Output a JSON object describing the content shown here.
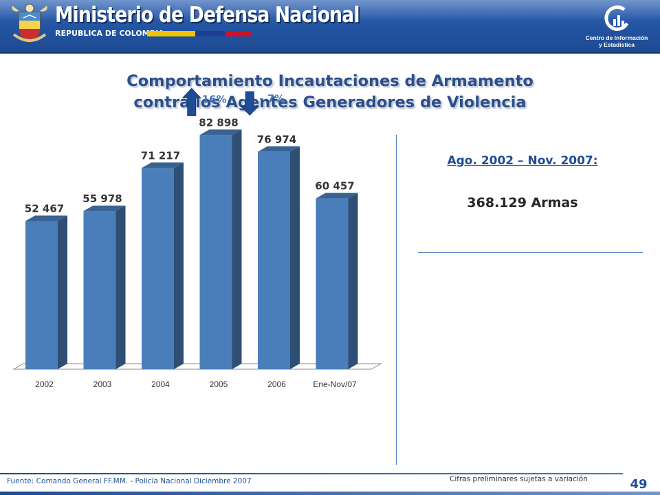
{
  "header": {
    "ministry_title": "Ministerio de Defensa Nacional",
    "ministry_subtitle": "REPUBLICA DE COLOMBIA",
    "logo_line1": "Centro de Información",
    "logo_line2": "y Estadística",
    "flag_colors": [
      "#f4c400",
      "#1c3f94",
      "#ce1126"
    ]
  },
  "title": {
    "line1": "Comportamiento Incautaciones de Armamento",
    "line2": "contra los Agentes Generadores de Violencia"
  },
  "chart_data": {
    "type": "bar",
    "title": "Comportamiento Incautaciones de Armamento contra los Agentes Generadores de Violencia",
    "categories": [
      "2002",
      "2003",
      "2004",
      "2005",
      "2006",
      "Ene-Nov/07"
    ],
    "values": [
      52467,
      55978,
      71217,
      82898,
      76974,
      60457
    ],
    "value_labels": [
      "52 467",
      "55 978",
      "71 217",
      "82 898",
      "76 974",
      "60 457"
    ],
    "xlabel": "",
    "ylabel": "",
    "ylim": [
      0,
      120000
    ],
    "bar_color": "#4a7ebb",
    "annotations": [
      {
        "text": "16%",
        "direction": "up",
        "between": [
          "2004",
          "2005"
        ]
      },
      {
        "text": "- 7%",
        "direction": "down",
        "between": [
          "2005",
          "2006"
        ]
      }
    ]
  },
  "summary": {
    "period": "Ago. 2002 – Nov. 2007:",
    "total": "368.129 Armas"
  },
  "footer": {
    "source": "Fuente:  Comando  General  FF.MM.  -  Policía  Nacional   Diciembre  2007",
    "note": "Cifras preliminares sujetas a variación",
    "page_number": "49"
  }
}
